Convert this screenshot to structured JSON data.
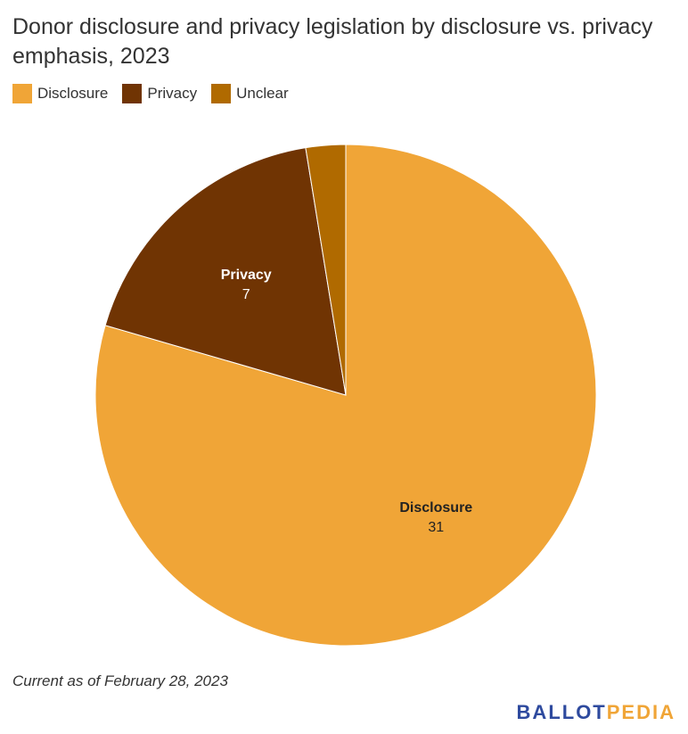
{
  "title": "Donor disclosure and privacy legislation by disclosure vs. privacy emphasis, 2023",
  "footnote": "Current as of February 28, 2023",
  "logo": {
    "part1": "BALLOT",
    "part2": "PEDIA"
  },
  "chart_data": {
    "type": "pie",
    "legend_position": "top-left",
    "slices": [
      {
        "label": "Disclosure",
        "value": 31,
        "color": "#f0a537",
        "show_label": true
      },
      {
        "label": "Privacy",
        "value": 7,
        "color": "#703403",
        "show_label": true
      },
      {
        "label": "Unclear",
        "value": 1,
        "color": "#b06a00",
        "show_label": false
      }
    ]
  }
}
